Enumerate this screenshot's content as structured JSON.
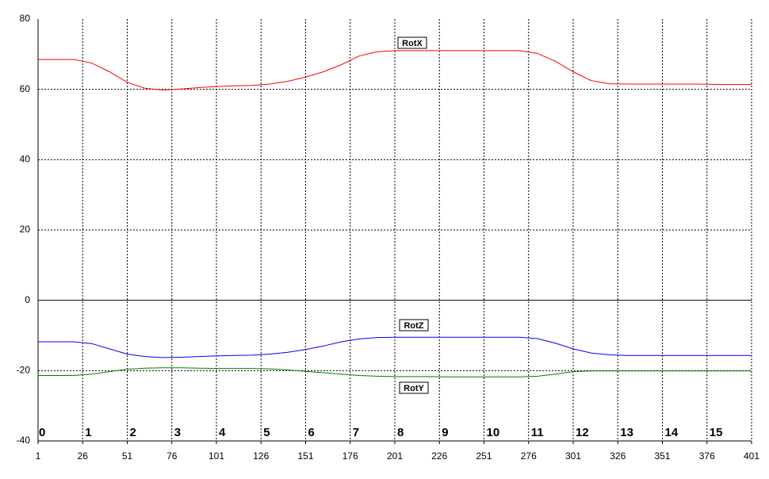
{
  "chart_data": {
    "type": "line",
    "x": [
      1,
      11,
      21,
      31,
      41,
      51,
      61,
      71,
      81,
      91,
      101,
      111,
      121,
      131,
      141,
      151,
      161,
      171,
      181,
      191,
      201,
      211,
      221,
      231,
      241,
      251,
      261,
      271,
      281,
      291,
      301,
      311,
      321,
      331,
      341,
      351,
      361,
      371,
      381,
      391,
      401
    ],
    "series": [
      {
        "name": "RotX",
        "color": "#ff0000",
        "values": [
          68.5,
          68.5,
          68.5,
          67.5,
          65,
          62,
          60.3,
          59.8,
          60.1,
          60.5,
          60.8,
          61,
          61.1,
          61.5,
          62.3,
          63.5,
          65,
          67,
          69.5,
          70.7,
          71,
          71,
          71,
          71,
          71,
          71,
          71,
          71,
          70.2,
          68,
          65,
          62.5,
          61.6,
          61.5,
          61.5,
          61.5,
          61.5,
          61.5,
          61.4,
          61.4,
          61.4
        ]
      },
      {
        "name": "RotZ",
        "color": "#0000ff",
        "values": [
          -11.8,
          -11.8,
          -11.8,
          -12.3,
          -13.8,
          -15.3,
          -16,
          -16.3,
          -16.2,
          -16,
          -15.8,
          -15.7,
          -15.6,
          -15.3,
          -14.8,
          -14,
          -13,
          -11.8,
          -11,
          -10.6,
          -10.5,
          -10.5,
          -10.5,
          -10.5,
          -10.5,
          -10.5,
          -10.5,
          -10.5,
          -10.9,
          -12.2,
          -13.8,
          -15,
          -15.5,
          -15.7,
          -15.7,
          -15.7,
          -15.7,
          -15.7,
          -15.7,
          -15.7,
          -15.7
        ]
      },
      {
        "name": "RotY",
        "color": "#008000",
        "values": [
          -21.4,
          -21.4,
          -21.4,
          -21,
          -20.3,
          -19.6,
          -19.3,
          -19.2,
          -19.2,
          -19.3,
          -19.4,
          -19.4,
          -19.4,
          -19.5,
          -19.8,
          -20.2,
          -20.6,
          -21,
          -21.4,
          -21.6,
          -21.7,
          -21.7,
          -21.7,
          -21.8,
          -21.8,
          -21.8,
          -21.8,
          -21.8,
          -21.6,
          -21,
          -20.3,
          -20.1,
          -20.1,
          -20.1,
          -20.1,
          -20.1,
          -20.1,
          -20.1,
          -20.1,
          -20.1,
          -20.1
        ]
      }
    ],
    "xlim": [
      1,
      401
    ],
    "xticks": [
      1,
      26,
      51,
      76,
      101,
      126,
      151,
      176,
      201,
      226,
      251,
      276,
      301,
      326,
      351,
      376,
      401
    ],
    "ylim": [
      -40,
      80
    ],
    "yticks": [
      -40,
      -20,
      0,
      20,
      40,
      60,
      80
    ],
    "annotations": [
      "0",
      "1",
      "2",
      "3",
      "4",
      "5",
      "6",
      "7",
      "8",
      "9",
      "10",
      "11",
      "12",
      "13",
      "14",
      "15"
    ],
    "grid": true
  }
}
